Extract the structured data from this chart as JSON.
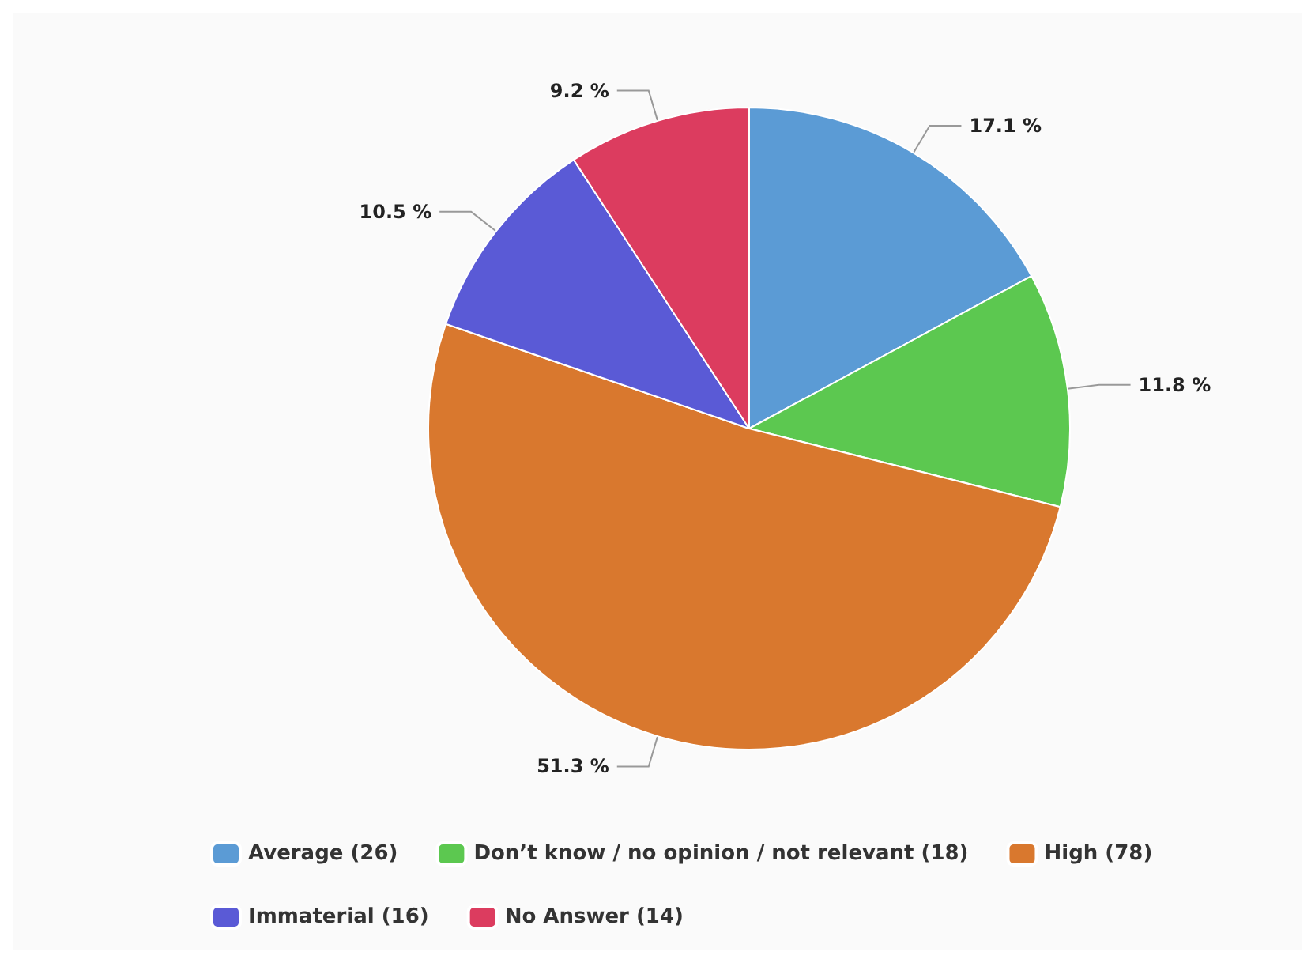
{
  "chart_data": {
    "type": "pie",
    "categories": [
      "Average (26)",
      "Don’t know / no opinion / not relevant (18)",
      "High (78)",
      "Immaterial (16)",
      "No Answer (14)"
    ],
    "values": [
      17.1,
      11.8,
      51.3,
      10.5,
      9.2
    ],
    "value_labels": [
      "17.1 %",
      "11.8 %",
      "51.3 %",
      "10.5 %",
      "9.2 %"
    ],
    "colors": [
      "#5b9bd5",
      "#5cc850",
      "#d9782e",
      "#5a5ad6",
      "#dc3c5f"
    ],
    "legend": "bottom"
  }
}
